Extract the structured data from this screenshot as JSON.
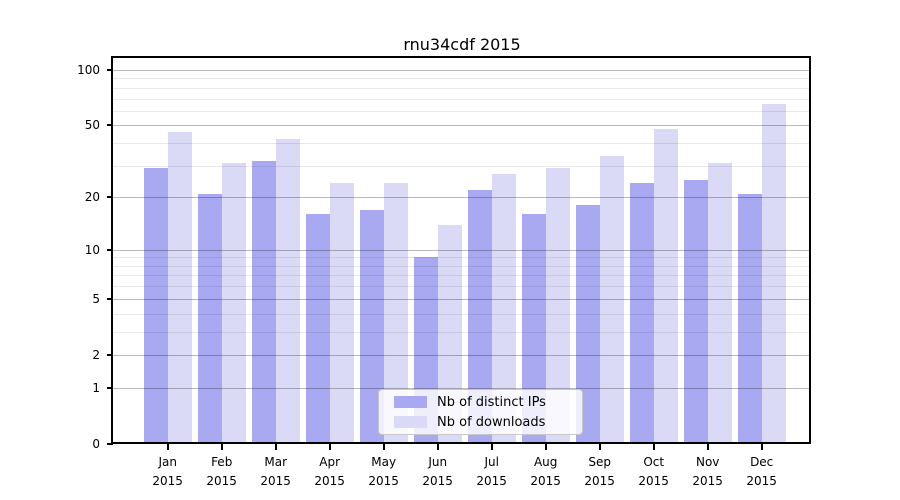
{
  "chart_data": {
    "type": "bar",
    "title": "rnu34cdf 2015",
    "categories": [
      "Jan",
      "Feb",
      "Mar",
      "Apr",
      "May",
      "Jun",
      "Jul",
      "Aug",
      "Sep",
      "Oct",
      "Nov",
      "Dec"
    ],
    "category_year": "2015",
    "series": [
      {
        "name": "Nb of distinct IPs",
        "color": "#a9a9f1",
        "values": [
          29,
          21,
          32,
          16,
          17,
          9,
          22,
          16,
          18,
          24,
          25,
          21
        ]
      },
      {
        "name": "Nb of downloads",
        "color": "#dadaf7",
        "values": [
          46,
          31,
          42,
          24,
          24,
          14,
          27,
          29,
          34,
          48,
          31,
          65
        ]
      }
    ],
    "xlabel": "",
    "ylabel": "",
    "yscale": "log1p",
    "ylim": [
      0,
      116
    ],
    "yticks": [
      0,
      1,
      2,
      5,
      10,
      20,
      50,
      100
    ],
    "minor_gridlines": [
      3,
      4,
      6,
      7,
      8,
      9,
      30,
      40,
      60,
      70,
      80,
      90
    ],
    "grid": "horizontal",
    "legend_position": "bottom-center",
    "colors": {
      "major_grid": "rgba(0,0,0,0.27)",
      "minor_grid": "rgba(0,0,0,0.09)",
      "axis": "#000000"
    }
  }
}
